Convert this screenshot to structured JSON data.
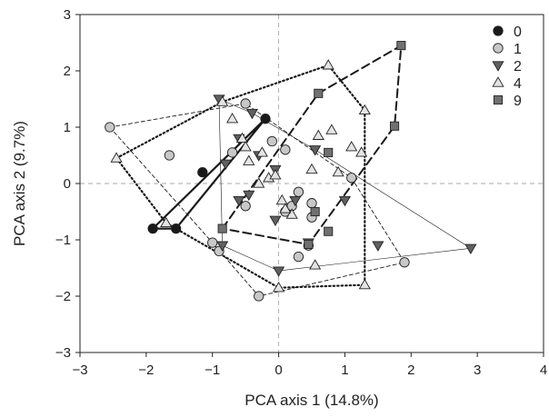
{
  "chart_data": {
    "type": "scatter",
    "xlabel": "PCA axis 1 (14.8%)",
    "ylabel": "PCA axis 2 (9.7%)",
    "xlim": [
      -3,
      4
    ],
    "ylim": [
      -3,
      3
    ],
    "xticks": [
      "−3",
      "−2",
      "−1",
      "0",
      "1",
      "2",
      "3",
      "4"
    ],
    "yticks": [
      "−3",
      "−2",
      "−1",
      "0",
      "1",
      "2",
      "3"
    ],
    "reference_lines": {
      "x": 0,
      "y": 0
    },
    "legend_position": "top-right",
    "series": [
      {
        "name": "0",
        "marker": "circle",
        "fill": "#1a1a1a",
        "hull": "thick-solid",
        "points": [
          [
            -0.2,
            1.15
          ],
          [
            -1.15,
            0.2
          ],
          [
            -1.9,
            -0.8
          ],
          [
            -1.55,
            -0.8
          ]
        ],
        "hull_order": [
          0,
          3,
          2
        ]
      },
      {
        "name": "1",
        "marker": "circle",
        "fill": "#c8c8c8",
        "hull": "thin-dashed",
        "points": [
          [
            -2.55,
            1.0
          ],
          [
            -1.65,
            0.5
          ],
          [
            -1.0,
            -1.05
          ],
          [
            -0.9,
            -1.2
          ],
          [
            -0.3,
            -2.0
          ],
          [
            -0.5,
            1.42
          ],
          [
            -0.7,
            0.55
          ],
          [
            -0.5,
            -0.4
          ],
          [
            -0.1,
            0.75
          ],
          [
            0.1,
            0.6
          ],
          [
            0.3,
            -0.15
          ],
          [
            0.1,
            -0.5
          ],
          [
            0.2,
            -0.4
          ],
          [
            0.5,
            -0.35
          ],
          [
            0.5,
            -0.6
          ],
          [
            0.3,
            -1.3
          ],
          [
            0.45,
            -1.1
          ],
          [
            1.1,
            0.1
          ],
          [
            1.9,
            -1.4
          ]
        ],
        "hull_order": [
          0,
          5,
          17,
          18,
          4,
          2
        ]
      },
      {
        "name": "2",
        "marker": "triangle-down",
        "fill": "#606060",
        "hull": "thin-solid",
        "points": [
          [
            -0.9,
            1.5
          ],
          [
            -0.4,
            1.25
          ],
          [
            -0.6,
            0.8
          ],
          [
            -0.8,
            0.35
          ],
          [
            -0.3,
            0.5
          ],
          [
            -0.05,
            0.25
          ],
          [
            -0.6,
            -0.3
          ],
          [
            -0.45,
            -0.2
          ],
          [
            0.25,
            -0.3
          ],
          [
            -0.05,
            -0.65
          ],
          [
            -0.85,
            -1.1
          ],
          [
            0.0,
            -1.55
          ],
          [
            0.45,
            -1.05
          ],
          [
            0.55,
            0.6
          ],
          [
            1.0,
            -0.3
          ],
          [
            1.5,
            -1.1
          ],
          [
            2.9,
            -1.15
          ]
        ],
        "hull_order": [
          0,
          1,
          13,
          16,
          11,
          10
        ]
      },
      {
        "name": "4",
        "marker": "triangle-up",
        "fill": "#e4e4e4",
        "hull": "dotted",
        "points": [
          [
            -2.45,
            0.45
          ],
          [
            -1.7,
            -0.7
          ],
          [
            -0.85,
            1.45
          ],
          [
            -0.7,
            1.15
          ],
          [
            -0.55,
            0.8
          ],
          [
            -0.5,
            0.65
          ],
          [
            -0.45,
            0.4
          ],
          [
            -0.25,
            0.55
          ],
          [
            -0.15,
            0.1
          ],
          [
            -0.05,
            0.15
          ],
          [
            0.05,
            -0.3
          ],
          [
            0.2,
            -0.55
          ],
          [
            0.1,
            -0.45
          ],
          [
            0.5,
            0.25
          ],
          [
            0.6,
            0.85
          ],
          [
            0.8,
            0.95
          ],
          [
            0.9,
            0.2
          ],
          [
            1.1,
            0.65
          ],
          [
            1.25,
            0.55
          ],
          [
            0.75,
            2.1
          ],
          [
            1.3,
            1.3
          ],
          [
            1.3,
            -1.8
          ],
          [
            0.0,
            -1.85
          ],
          [
            0.55,
            -1.45
          ],
          [
            -0.3,
            0.0
          ]
        ],
        "hull_order": [
          0,
          2,
          19,
          20,
          21,
          22,
          1
        ]
      },
      {
        "name": "9",
        "marker": "square",
        "fill": "#707070",
        "hull": "thick-dashed",
        "points": [
          [
            -0.85,
            -0.8
          ],
          [
            0.6,
            1.6
          ],
          [
            0.75,
            0.55
          ],
          [
            0.45,
            -1.08
          ],
          [
            1.85,
            2.45
          ],
          [
            1.75,
            1.02
          ],
          [
            0.75,
            -0.85
          ],
          [
            0.55,
            -0.5
          ]
        ],
        "hull_order": [
          0,
          1,
          4,
          5,
          3
        ]
      }
    ]
  }
}
